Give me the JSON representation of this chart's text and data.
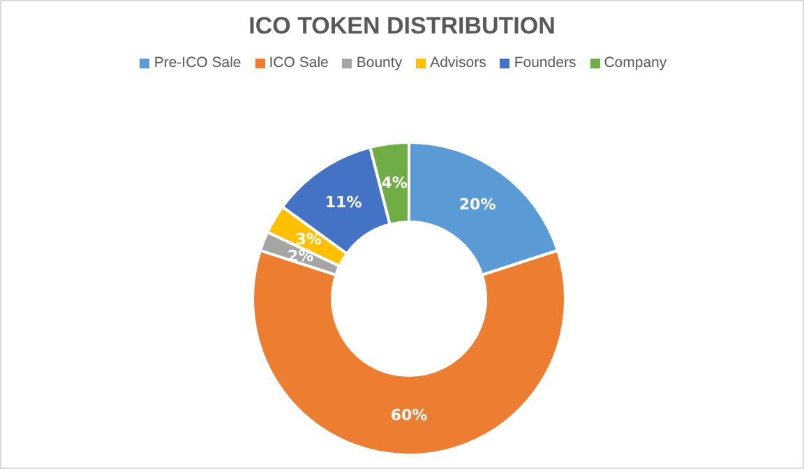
{
  "chart_data": {
    "type": "donut",
    "title": "ICO TOKEN DISTRIBUTION",
    "categories": [
      "Pre-ICO Sale",
      "ICO Sale",
      "Bounty",
      "Advisors",
      "Founders",
      "Company"
    ],
    "values": [
      20,
      60,
      2,
      3,
      11,
      4
    ],
    "colors": [
      "#5b9bd5",
      "#ed7d31",
      "#a5a5a5",
      "#ffc000",
      "#4472c4",
      "#70ad47"
    ],
    "value_labels": [
      "20%",
      "60%",
      "2%",
      "3%",
      "11%",
      "4%"
    ],
    "legend": "top"
  }
}
